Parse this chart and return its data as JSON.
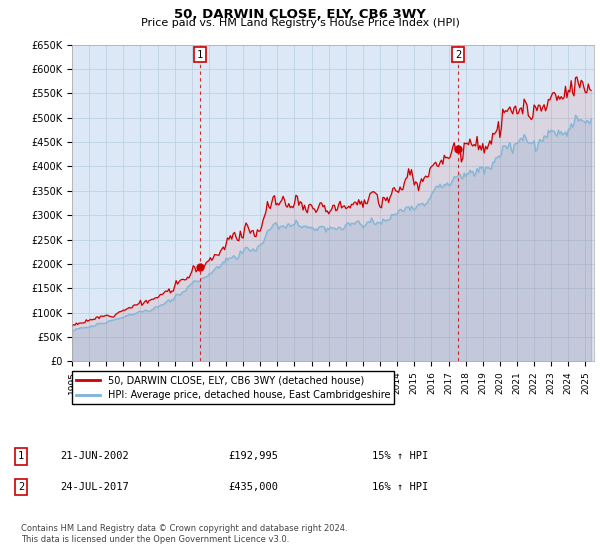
{
  "title": "50, DARWIN CLOSE, ELY, CB6 3WY",
  "subtitle": "Price paid vs. HM Land Registry's House Price Index (HPI)",
  "ylim": [
    0,
    650000
  ],
  "xlim_start": 1995.0,
  "xlim_end": 2025.5,
  "purchase1_x": 2002.47,
  "purchase1_y": 192995,
  "purchase2_x": 2017.56,
  "purchase2_y": 435000,
  "purchase1_label": "21-JUN-2002",
  "purchase1_price": "£192,995",
  "purchase1_hpi": "15% ↑ HPI",
  "purchase2_label": "24-JUL-2017",
  "purchase2_price": "£435,000",
  "purchase2_hpi": "16% ↑ HPI",
  "legend_line1": "50, DARWIN CLOSE, ELY, CB6 3WY (detached house)",
  "legend_line2": "HPI: Average price, detached house, East Cambridgeshire",
  "footer1": "Contains HM Land Registry data © Crown copyright and database right 2024.",
  "footer2": "This data is licensed under the Open Government Licence v3.0.",
  "hpi_color": "#7ab4d8",
  "price_color": "#cc0000",
  "plot_bg": "#dce8f5",
  "grid_color": "#b8cfe0"
}
